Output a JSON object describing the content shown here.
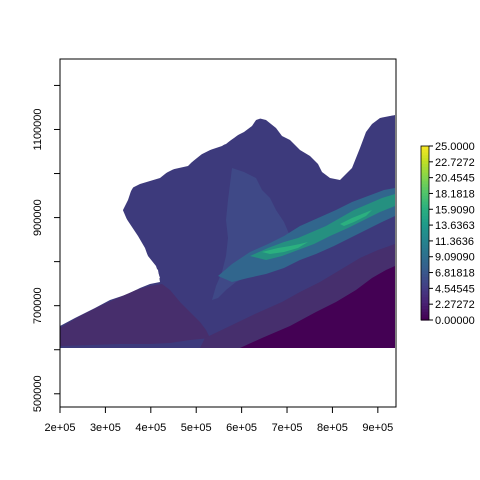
{
  "chart_data": {
    "type": "heatmap",
    "title": "",
    "xlabel": "",
    "ylabel": "",
    "xlim": [
      200000,
      940000
    ],
    "ylim": [
      470000,
      1260000
    ],
    "x_ticks": [
      "2e+05",
      "3e+05",
      "4e+05",
      "5e+05",
      "6e+05",
      "7e+05",
      "8e+05",
      "9e+05"
    ],
    "y_ticks": [
      "500000",
      "700000",
      "900000",
      "1100000"
    ],
    "colorbar": {
      "range": [
        0,
        25
      ],
      "labels": [
        "0.00000",
        "2.27272",
        "4.54545",
        "6.81818",
        "9.09090",
        "11.3636",
        "13.6363",
        "15.9090",
        "18.1818",
        "20.4545",
        "22.7272",
        "25.0000"
      ],
      "palette": [
        "#440154",
        "#482173",
        "#433E85",
        "#38598C",
        "#2D708E",
        "#25858E",
        "#1E9B8A",
        "#2BB07F",
        "#51C56A",
        "#85D54A",
        "#C2DF23",
        "#FDE725"
      ]
    },
    "raster": {
      "land_color": "#440154",
      "shelf_color": "#46306C",
      "deep_color": "#3B3D7E",
      "high_colors": [
        "#2D708E",
        "#25858E",
        "#1E9B8A",
        "#2BB07F"
      ],
      "value_grid_cutoff_y": 600000
    }
  }
}
